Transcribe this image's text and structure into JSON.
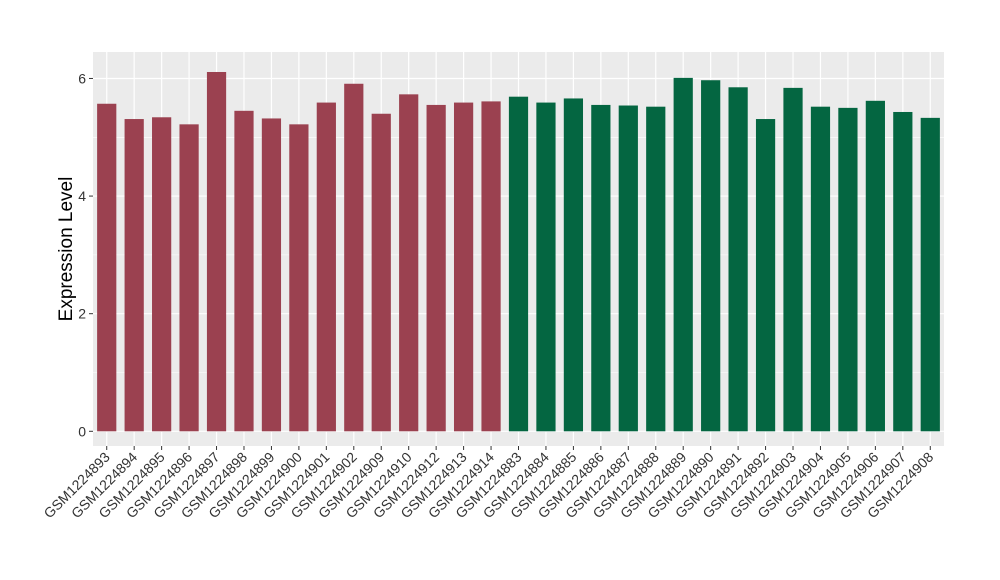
{
  "chart_data": {
    "type": "bar",
    "title": "",
    "xlabel": "",
    "ylabel": "Expression Level",
    "ylim": [
      -0.25,
      6.45
    ],
    "yticks": [
      0,
      2,
      4,
      6
    ],
    "grid": true,
    "legend": "none",
    "background_color": "#ebebeb",
    "grid_color": "#ffffff",
    "group_colors": [
      "#9b4150",
      "#046641"
    ],
    "categories": [
      "GSM1224893",
      "GSM1224894",
      "GSM1224895",
      "GSM1224896",
      "GSM1224897",
      "GSM1224898",
      "GSM1224899",
      "GSM1224900",
      "GSM1224901",
      "GSM1224902",
      "GSM1224909",
      "GSM1224910",
      "GSM1224912",
      "GSM1224913",
      "GSM1224914",
      "GSM1224883",
      "GSM1224884",
      "GSM1224885",
      "GSM1224886",
      "GSM1224887",
      "GSM1224888",
      "GSM1224889",
      "GSM1224890",
      "GSM1224891",
      "GSM1224892",
      "GSM1224903",
      "GSM1224904",
      "GSM1224905",
      "GSM1224906",
      "GSM1224907",
      "GSM1224908"
    ],
    "values": [
      5.57,
      5.31,
      5.34,
      5.22,
      6.11,
      5.45,
      5.32,
      5.22,
      5.59,
      5.91,
      5.4,
      5.73,
      5.55,
      5.59,
      5.61,
      5.69,
      5.59,
      5.66,
      5.55,
      5.54,
      5.52,
      6.01,
      5.97,
      5.85,
      5.31,
      5.84,
      5.52,
      5.5,
      5.62,
      5.43,
      5.33
    ],
    "groups": [
      0,
      0,
      0,
      0,
      0,
      0,
      0,
      0,
      0,
      0,
      0,
      0,
      0,
      0,
      0,
      1,
      1,
      1,
      1,
      1,
      1,
      1,
      1,
      1,
      1,
      1,
      1,
      1,
      1,
      1,
      1
    ]
  }
}
